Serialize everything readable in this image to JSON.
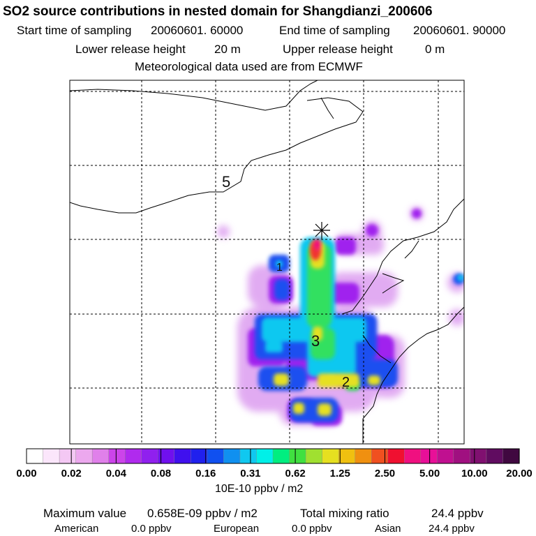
{
  "title": "SO2 source contributions in nested domain for Shangdianzi_200606",
  "header": {
    "start_label": "Start time of sampling",
    "start_value": "20060601. 60000",
    "end_label": "End time of sampling",
    "end_value": "20060601. 90000",
    "lower_label": "Lower release height",
    "lower_value": "20 m",
    "upper_label": "Upper release height",
    "upper_value": "0 m",
    "met_line": "Meteorological data used are from ECMWF"
  },
  "map": {
    "contour_labels": [
      "5",
      "1",
      "3",
      "2"
    ],
    "station_marker": "cross-star",
    "palette": [
      "#ffffff",
      "#fbe6fb",
      "#f4c8f4",
      "#eca8ee",
      "#e080ea",
      "#cc44ea",
      "#b02aee",
      "#9020ee",
      "#7010ee",
      "#4010ee",
      "#2020ee",
      "#1050f0",
      "#1090f0",
      "#10c8f0",
      "#00f0e8",
      "#00ee80",
      "#40e040",
      "#a0e030",
      "#e6e020",
      "#f0c010",
      "#f09010",
      "#f05020",
      "#f01030",
      "#f01080",
      "#e81098",
      "#c01090",
      "#a01080",
      "#801070",
      "#600c60",
      "#400840"
    ]
  },
  "colorbar": {
    "ticks": [
      "0.00",
      "0.02",
      "0.04",
      "0.08",
      "0.16",
      "0.31",
      "0.62",
      "1.25",
      "2.50",
      "5.00",
      "10.00",
      "20.00"
    ],
    "units": "10E-10 ppbv / m2"
  },
  "stats": {
    "max_label": "Maximum value",
    "max_value": "0.658E-09 ppbv / m2",
    "total_label": "Total mixing ratio",
    "total_value": "24.4 ppbv",
    "regions": [
      {
        "name": "American",
        "value": "0.0 ppbv"
      },
      {
        "name": "European",
        "value": "0.0 ppbv"
      },
      {
        "name": "Asian",
        "value": "24.4 ppbv"
      }
    ]
  }
}
